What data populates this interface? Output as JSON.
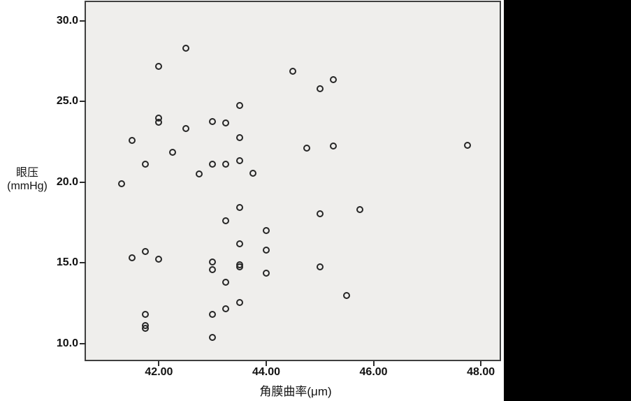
{
  "figure": {
    "outer_background": "#000000",
    "page_background": "#ffffff",
    "plot_background": "#efeeec",
    "plot_border_color": "#3f3f3f",
    "point_outline_color": "#262626"
  },
  "chart_data": {
    "type": "scatter",
    "title": "",
    "xlabel": "角膜曲率(μm)",
    "ylabel": "眼压\n(mmHg)",
    "legend": "none",
    "grid": false,
    "marker": "open-circle",
    "xlim": [
      40.64,
      48.35
    ],
    "ylim": [
      9.0,
      31.15
    ],
    "x_ticks": [
      {
        "value": 42,
        "label": "42.00"
      },
      {
        "value": 44,
        "label": "44.00"
      },
      {
        "value": 46,
        "label": "46.00"
      },
      {
        "value": 48,
        "label": "48.00"
      }
    ],
    "y_ticks": [
      {
        "value": 10,
        "label": "10.0"
      },
      {
        "value": 15,
        "label": "15.0"
      },
      {
        "value": 20,
        "label": "20.0"
      },
      {
        "value": 25,
        "label": "25.0"
      },
      {
        "value": 30,
        "label": "30.0"
      }
    ],
    "points": [
      [
        42.5,
        28.3
      ],
      [
        42.0,
        27.15
      ],
      [
        44.5,
        26.85
      ],
      [
        45.25,
        26.35
      ],
      [
        45.0,
        25.8
      ],
      [
        43.5,
        24.75
      ],
      [
        42.0,
        23.95
      ],
      [
        43.0,
        23.75
      ],
      [
        42.0,
        23.7
      ],
      [
        43.25,
        23.65
      ],
      [
        42.5,
        23.3
      ],
      [
        43.5,
        22.75
      ],
      [
        41.5,
        22.6
      ],
      [
        47.75,
        22.3
      ],
      [
        45.25,
        22.25
      ],
      [
        44.75,
        22.1
      ],
      [
        42.25,
        21.85
      ],
      [
        43.5,
        21.35
      ],
      [
        41.75,
        21.1
      ],
      [
        43.0,
        21.1
      ],
      [
        43.25,
        21.1
      ],
      [
        43.75,
        20.55
      ],
      [
        42.75,
        20.5
      ],
      [
        41.3,
        19.9
      ],
      [
        43.5,
        18.45
      ],
      [
        45.75,
        18.3
      ],
      [
        45.0,
        18.05
      ],
      [
        43.25,
        17.6
      ],
      [
        44.0,
        17.0
      ],
      [
        43.5,
        16.2
      ],
      [
        44.0,
        15.8
      ],
      [
        41.75,
        15.7
      ],
      [
        41.5,
        15.3
      ],
      [
        42.0,
        15.25
      ],
      [
        43.0,
        15.05
      ],
      [
        43.5,
        14.9
      ],
      [
        43.5,
        14.75
      ],
      [
        45.0,
        14.75
      ],
      [
        44.0,
        14.35
      ],
      [
        43.0,
        14.6
      ],
      [
        43.25,
        13.8
      ],
      [
        45.5,
        13.0
      ],
      [
        43.5,
        12.55
      ],
      [
        43.25,
        12.15
      ],
      [
        41.75,
        11.8
      ],
      [
        43.0,
        11.8
      ],
      [
        41.75,
        11.1
      ],
      [
        41.75,
        10.95
      ],
      [
        43.0,
        10.4
      ]
    ]
  }
}
